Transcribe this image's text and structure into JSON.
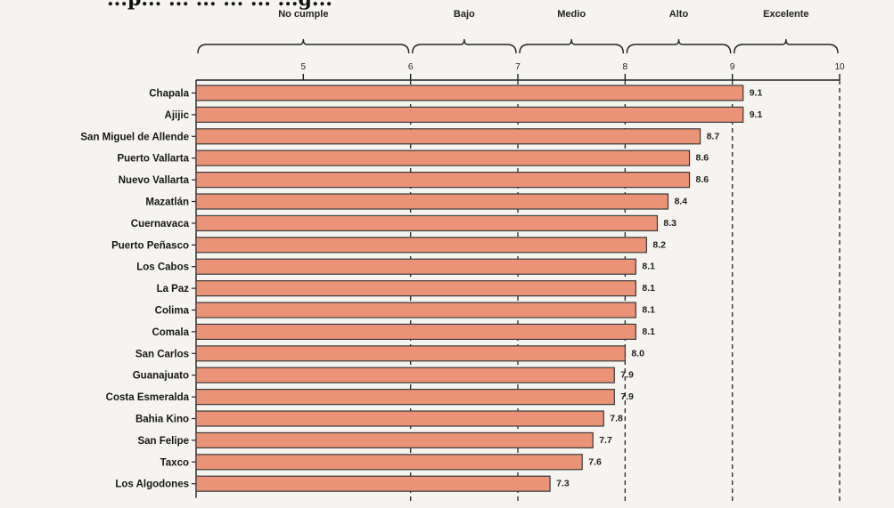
{
  "title": "...p... ... ... ... ... ...g...",
  "chart_data": {
    "type": "bar",
    "orientation": "horizontal",
    "categories": [
      "Chapala",
      "Ajijic",
      "San Miguel de Allende",
      "Puerto Vallarta",
      "Nuevo Vallarta",
      "Mazatlán",
      "Cuernavaca",
      "Puerto Peñasco",
      "Los Cabos",
      "La Paz",
      "Colima",
      "Comala",
      "San Carlos",
      "Guanajuato",
      "Costa Esmeralda",
      "Bahia Kino",
      "San Felipe",
      "Taxco",
      "Los Algodones"
    ],
    "values": [
      9.1,
      9.1,
      8.7,
      8.6,
      8.6,
      8.4,
      8.3,
      8.2,
      8.1,
      8.1,
      8.1,
      8.1,
      8.0,
      7.9,
      7.9,
      7.8,
      7.7,
      7.6,
      7.3
    ],
    "value_labels": [
      "9.1",
      "9.1",
      "8.7",
      "8.6",
      "8.6",
      "8.4",
      "8.3",
      "8.2",
      "8.1",
      "8.1",
      "8.1",
      "8.1",
      "8.0",
      "7.9",
      "7.9",
      "7.8",
      "7.7",
      "7.6",
      "7.3"
    ],
    "xlim": [
      4,
      10
    ],
    "xticks": [
      5,
      6,
      7,
      8,
      9,
      10
    ],
    "xtick_labels": [
      "5",
      "6",
      "7",
      "8",
      "9",
      "10"
    ],
    "ranges": [
      {
        "label": "No cumple",
        "from": 4,
        "to": 6
      },
      {
        "label": "Bajo",
        "from": 6,
        "to": 7
      },
      {
        "label": "Medio",
        "from": 7,
        "to": 8
      },
      {
        "label": "Alto",
        "from": 8,
        "to": 9
      },
      {
        "label": "Excelente",
        "from": 9,
        "to": 10
      }
    ],
    "dashed_lines_at": [
      6,
      7,
      8,
      9,
      10
    ],
    "grid": false,
    "legend": "none",
    "bar_color": "#eb9377",
    "bar_edge_color": "#3a3a3a"
  }
}
